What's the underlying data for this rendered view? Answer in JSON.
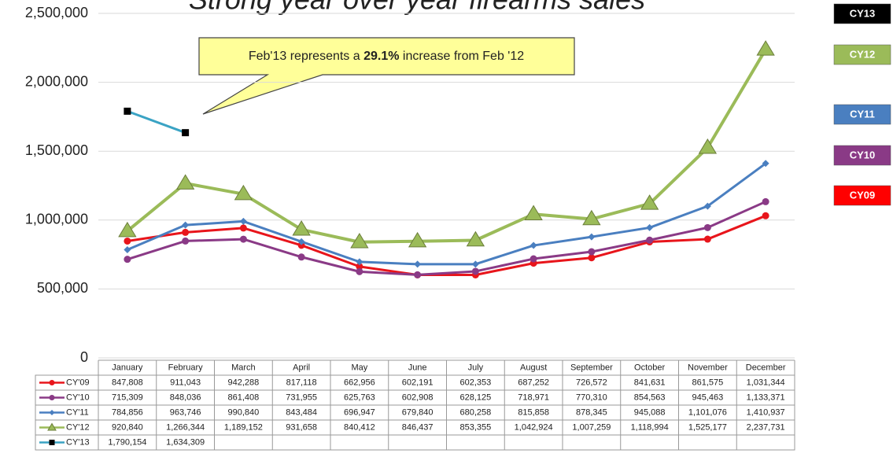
{
  "chart_data": {
    "type": "line",
    "title": "Strong year over year firearms sales",
    "annotation": [
      "Feb'13  represents a ",
      "29.1%",
      " increase from  Feb '12"
    ],
    "categories": [
      "January",
      "February",
      "March",
      "April",
      "May",
      "June",
      "July",
      "August",
      "September",
      "October",
      "November",
      "December"
    ],
    "ylim": [
      0,
      2500000
    ],
    "yticks": [
      0,
      {
        "value": 500000,
        "label": "500,000"
      },
      {
        "value": 1000000,
        "label": "1,000,000"
      },
      {
        "value": 1500000,
        "label": "1,500,000"
      },
      {
        "value": 2000000,
        "label": "2,000,000"
      },
      {
        "value": 2500000,
        "label": "2,500,000"
      }
    ],
    "grid": true,
    "series": [
      {
        "name": "CY'09",
        "color": "#e8151b",
        "marker": "circle",
        "values": [
          847808,
          911043,
          942288,
          817118,
          662956,
          602191,
          602353,
          687252,
          726572,
          841631,
          861575,
          1031344
        ],
        "value_labels": [
          "847,808",
          "911,043",
          "942,288",
          "817,118",
          "662,956",
          "602,191",
          "602,353",
          "687,252",
          "726,572",
          "841,631",
          "861,575",
          "1,031,344"
        ]
      },
      {
        "name": "CY'10",
        "color": "#8a3a86",
        "marker": "circle",
        "values": [
          715309,
          848036,
          861408,
          731955,
          625763,
          602908,
          628125,
          718971,
          770310,
          854563,
          945463,
          1133371
        ],
        "value_labels": [
          "715,309",
          "848,036",
          "861,408",
          "731,955",
          "625,763",
          "602,908",
          "628,125",
          "718,971",
          "770,310",
          "854,563",
          "945,463",
          "1,133,371"
        ]
      },
      {
        "name": "CY'11",
        "color": "#4a7fc0",
        "marker": "diamond",
        "values": [
          784856,
          963746,
          990840,
          843484,
          696947,
          679840,
          680258,
          815858,
          878345,
          945088,
          1101076,
          1410937
        ],
        "value_labels": [
          "784,856",
          "963,746",
          "990,840",
          "843,484",
          "696,947",
          "679,840",
          "680,258",
          "815,858",
          "878,345",
          "945,088",
          "1,101,076",
          "1,410,937"
        ]
      },
      {
        "name": "CY'12",
        "color": "#9bbb59",
        "marker": "triangle",
        "values": [
          920840,
          1266344,
          1189152,
          931658,
          840412,
          846437,
          853355,
          1042924,
          1007259,
          1118994,
          1525177,
          2237731
        ],
        "value_labels": [
          "920,840",
          "1,266,344",
          "1,189,152",
          "931,658",
          "840,412",
          "846,437",
          "853,355",
          "1,042,924",
          "1,007,259",
          "1,118,994",
          "1,525,177",
          "2,237,731"
        ]
      },
      {
        "name": "CY'13",
        "color": "#3aa3c4",
        "marker": "square",
        "values": [
          1790154,
          1634309,
          null,
          null,
          null,
          null,
          null,
          null,
          null,
          null,
          null,
          null
        ],
        "value_labels": [
          "1,790,154",
          "1,634,309",
          null,
          null,
          null,
          null,
          null,
          null,
          null,
          null,
          null,
          null
        ]
      }
    ],
    "badges": [
      {
        "label": "CY13",
        "color": "#000000"
      },
      {
        "label": "CY12",
        "color": "#9bbb59"
      },
      {
        "label": "CY11",
        "color": "#4a7fc0"
      },
      {
        "label": "CY10",
        "color": "#8a3a86"
      },
      {
        "label": "CY09",
        "color": "#ff0000"
      }
    ]
  }
}
